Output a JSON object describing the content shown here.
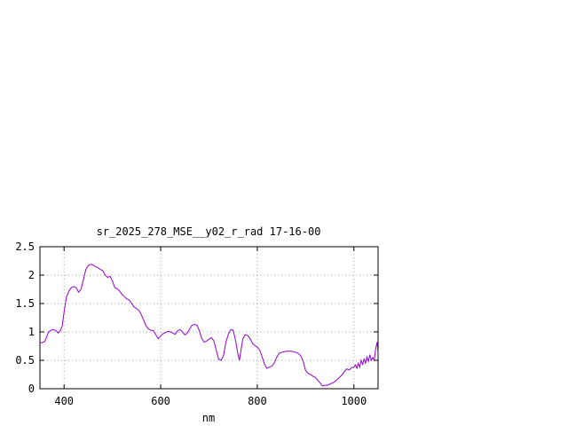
{
  "chart_data": {
    "type": "line",
    "title": "sr_2025_278_MSE__y02_r_rad 17-16-00",
    "xlabel": "nm",
    "ylabel": "",
    "xlim": [
      350,
      1050
    ],
    "ylim": [
      0,
      2.5
    ],
    "x_ticks": [
      400,
      600,
      800,
      1000
    ],
    "x_tick_labels": [
      "400",
      "600",
      "800",
      "1000"
    ],
    "y_ticks": [
      0,
      0.5,
      1,
      1.5,
      2,
      2.5
    ],
    "y_tick_labels": [
      "0",
      "0.5",
      "1",
      "1.5",
      "2",
      "2.5"
    ],
    "grid": true,
    "legend": "none",
    "series": [
      {
        "color": "#9400d3",
        "points": [
          [
            350,
            0.8
          ],
          [
            360,
            0.83
          ],
          [
            368,
            1.0
          ],
          [
            375,
            1.04
          ],
          [
            382,
            1.03
          ],
          [
            388,
            0.98
          ],
          [
            392,
            1.02
          ],
          [
            396,
            1.1
          ],
          [
            400,
            1.35
          ],
          [
            405,
            1.62
          ],
          [
            410,
            1.72
          ],
          [
            415,
            1.78
          ],
          [
            420,
            1.8
          ],
          [
            425,
            1.78
          ],
          [
            430,
            1.7
          ],
          [
            435,
            1.75
          ],
          [
            440,
            1.92
          ],
          [
            445,
            2.1
          ],
          [
            450,
            2.17
          ],
          [
            455,
            2.19
          ],
          [
            460,
            2.18
          ],
          [
            465,
            2.15
          ],
          [
            470,
            2.13
          ],
          [
            475,
            2.1
          ],
          [
            480,
            2.08
          ],
          [
            485,
            2.0
          ],
          [
            490,
            1.96
          ],
          [
            495,
            1.98
          ],
          [
            500,
            1.9
          ],
          [
            505,
            1.78
          ],
          [
            510,
            1.76
          ],
          [
            515,
            1.72
          ],
          [
            520,
            1.66
          ],
          [
            525,
            1.62
          ],
          [
            530,
            1.58
          ],
          [
            535,
            1.56
          ],
          [
            540,
            1.5
          ],
          [
            545,
            1.44
          ],
          [
            550,
            1.41
          ],
          [
            555,
            1.38
          ],
          [
            560,
            1.3
          ],
          [
            565,
            1.2
          ],
          [
            570,
            1.1
          ],
          [
            575,
            1.05
          ],
          [
            580,
            1.03
          ],
          [
            585,
            1.02
          ],
          [
            590,
            0.95
          ],
          [
            595,
            0.88
          ],
          [
            600,
            0.93
          ],
          [
            605,
            0.97
          ],
          [
            610,
            0.99
          ],
          [
            615,
            1.01
          ],
          [
            620,
            1.0
          ],
          [
            625,
            0.98
          ],
          [
            630,
            0.96
          ],
          [
            635,
            1.02
          ],
          [
            640,
            1.04
          ],
          [
            645,
            1.0
          ],
          [
            650,
            0.95
          ],
          [
            655,
            0.98
          ],
          [
            660,
            1.05
          ],
          [
            665,
            1.12
          ],
          [
            670,
            1.13
          ],
          [
            675,
            1.12
          ],
          [
            680,
            1.02
          ],
          [
            685,
            0.88
          ],
          [
            690,
            0.82
          ],
          [
            695,
            0.84
          ],
          [
            700,
            0.87
          ],
          [
            705,
            0.9
          ],
          [
            710,
            0.84
          ],
          [
            715,
            0.68
          ],
          [
            720,
            0.52
          ],
          [
            725,
            0.5
          ],
          [
            730,
            0.58
          ],
          [
            735,
            0.82
          ],
          [
            740,
            0.96
          ],
          [
            745,
            1.04
          ],
          [
            750,
            1.03
          ],
          [
            755,
            0.85
          ],
          [
            760,
            0.6
          ],
          [
            763,
            0.5
          ],
          [
            767,
            0.72
          ],
          [
            770,
            0.88
          ],
          [
            775,
            0.95
          ],
          [
            780,
            0.94
          ],
          [
            785,
            0.88
          ],
          [
            790,
            0.8
          ],
          [
            795,
            0.76
          ],
          [
            800,
            0.73
          ],
          [
            805,
            0.68
          ],
          [
            810,
            0.56
          ],
          [
            815,
            0.43
          ],
          [
            820,
            0.36
          ],
          [
            825,
            0.38
          ],
          [
            830,
            0.4
          ],
          [
            835,
            0.45
          ],
          [
            840,
            0.55
          ],
          [
            845,
            0.62
          ],
          [
            850,
            0.64
          ],
          [
            855,
            0.65
          ],
          [
            860,
            0.66
          ],
          [
            865,
            0.66
          ],
          [
            870,
            0.66
          ],
          [
            875,
            0.65
          ],
          [
            880,
            0.64
          ],
          [
            885,
            0.62
          ],
          [
            890,
            0.58
          ],
          [
            895,
            0.48
          ],
          [
            900,
            0.32
          ],
          [
            905,
            0.27
          ],
          [
            910,
            0.25
          ],
          [
            915,
            0.22
          ],
          [
            920,
            0.2
          ],
          [
            925,
            0.15
          ],
          [
            930,
            0.1
          ],
          [
            935,
            0.05
          ],
          [
            940,
            0.06
          ],
          [
            945,
            0.06
          ],
          [
            950,
            0.08
          ],
          [
            955,
            0.1
          ],
          [
            960,
            0.12
          ],
          [
            965,
            0.16
          ],
          [
            970,
            0.2
          ],
          [
            975,
            0.24
          ],
          [
            980,
            0.3
          ],
          [
            985,
            0.35
          ],
          [
            990,
            0.33
          ],
          [
            995,
            0.37
          ],
          [
            1000,
            0.38
          ],
          [
            1003,
            0.42
          ],
          [
            1006,
            0.36
          ],
          [
            1009,
            0.45
          ],
          [
            1012,
            0.38
          ],
          [
            1015,
            0.5
          ],
          [
            1018,
            0.43
          ],
          [
            1021,
            0.52
          ],
          [
            1024,
            0.45
          ],
          [
            1027,
            0.56
          ],
          [
            1030,
            0.48
          ],
          [
            1033,
            0.6
          ],
          [
            1036,
            0.5
          ],
          [
            1039,
            0.55
          ],
          [
            1042,
            0.5
          ],
          [
            1045,
            0.7
          ],
          [
            1048,
            0.82
          ],
          [
            1050,
            0.62
          ]
        ]
      }
    ]
  }
}
